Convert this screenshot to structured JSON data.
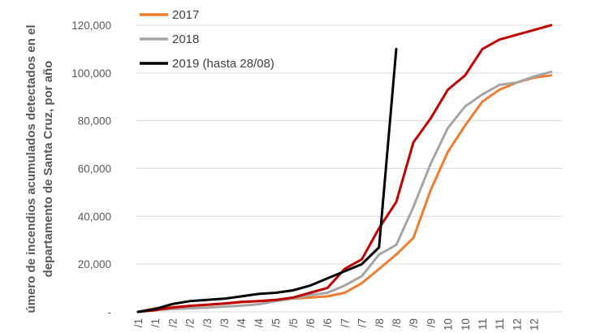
{
  "chart_data": {
    "type": "line",
    "ylabel_lines": [
      "úmero de incendios acumulados detectados en el",
      "departamento de Santa Cruz, por año"
    ],
    "ylim": [
      0,
      120000
    ],
    "yticks": [
      0,
      20000,
      40000,
      60000,
      80000,
      100000,
      120000
    ],
    "ytick_labels": [
      "-",
      "20,000",
      "40,000",
      "60,000",
      "80,000",
      "100,000",
      "120,000"
    ],
    "xtick_labels": [
      "/1",
      "/1",
      "/2",
      "/2",
      "/3",
      "/3",
      "/4",
      "/4",
      "/5",
      "/5",
      "/6",
      "/6",
      "/7",
      "/7",
      "/8",
      "/8",
      "/9",
      "/9",
      "10",
      "10",
      "11",
      "11",
      "12",
      "12"
    ],
    "grid": "horizontal",
    "legend_position": "top-left",
    "series": [
      {
        "name": "2017",
        "color": "#ED7D31",
        "values": [
          0,
          1500,
          2000,
          2500,
          3000,
          3500,
          4000,
          4500,
          5000,
          5500,
          6000,
          6500,
          8000,
          12000,
          18000,
          24000,
          31000,
          51000,
          67000,
          78000,
          88000,
          93000,
          96000,
          98000,
          99000
        ]
      },
      {
        "name": "2018",
        "color": "#A5A5A5",
        "values": [
          0,
          800,
          1200,
          1500,
          1800,
          2200,
          2600,
          3200,
          4500,
          5500,
          7000,
          8000,
          11000,
          15000,
          24000,
          28000,
          44000,
          62000,
          77000,
          86000,
          91000,
          95000,
          96000,
          98500,
          100500
        ]
      },
      {
        "name": "",
        "color": "#C00000",
        "values": [
          0,
          700,
          1800,
          2500,
          3000,
          3500,
          4200,
          4500,
          5000,
          6000,
          8000,
          10000,
          18000,
          22000,
          35000,
          46000,
          71000,
          81000,
          93000,
          99000,
          110000,
          114000,
          116000,
          118000,
          120000
        ]
      },
      {
        "name": "2019 (hasta 28/08)",
        "color": "#000000",
        "values": [
          0,
          1200,
          3300,
          4500,
          5000,
          5500,
          6500,
          7500,
          8000,
          9000,
          11000,
          14000,
          17000,
          20000,
          27000,
          110000
        ]
      }
    ]
  }
}
